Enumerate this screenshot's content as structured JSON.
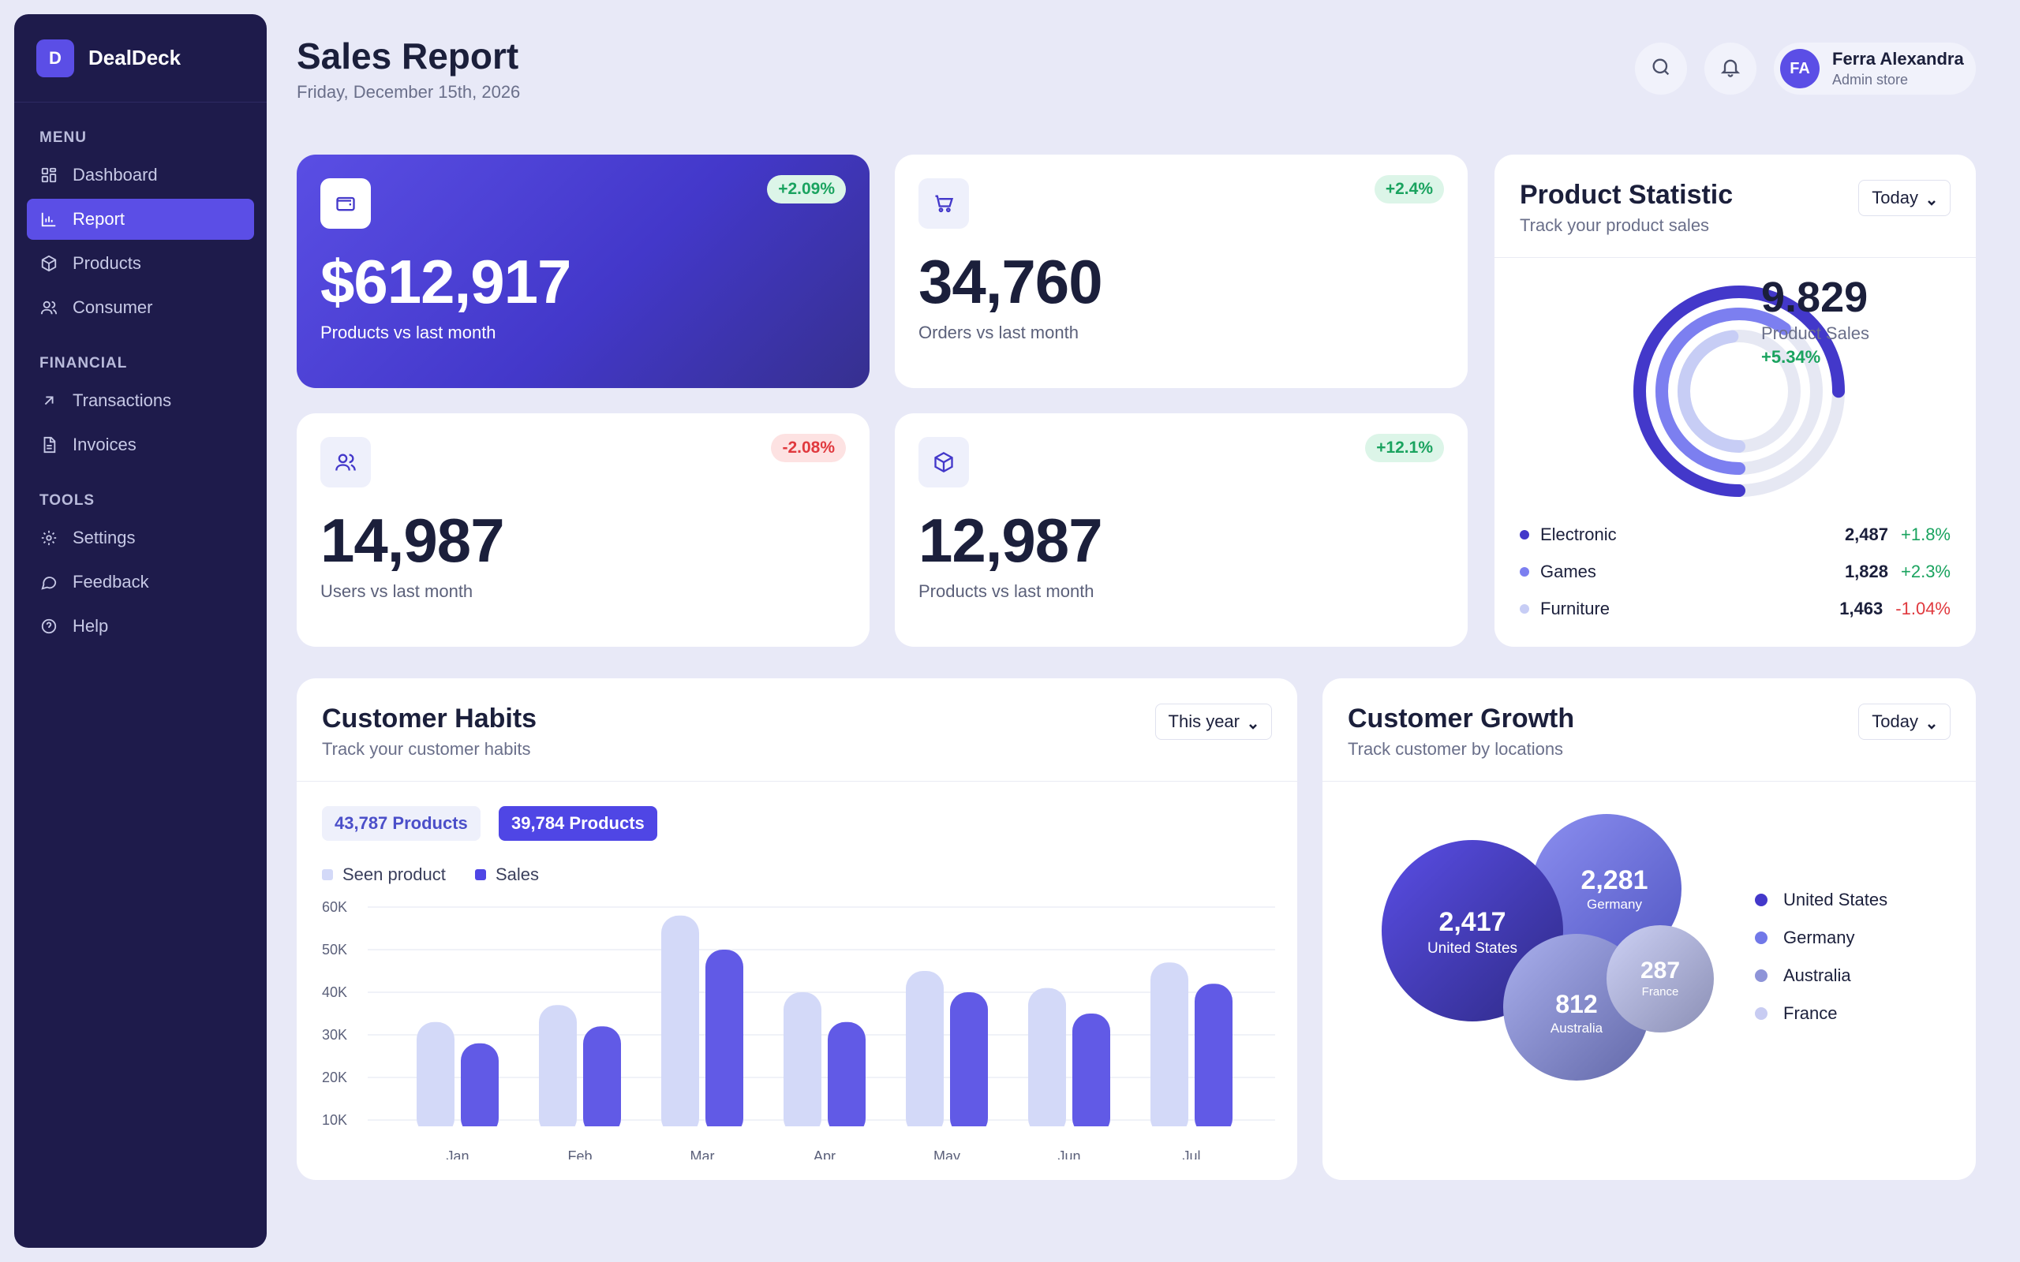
{
  "brand": {
    "initial": "D",
    "name": "DealDeck"
  },
  "sidebar": {
    "sections": [
      {
        "label": "MENU",
        "items": [
          {
            "label": "Dashboard",
            "icon": "grid-icon"
          },
          {
            "label": "Report",
            "icon": "bar-chart-icon",
            "active": true
          },
          {
            "label": "Products",
            "icon": "box-icon"
          },
          {
            "label": "Consumer",
            "icon": "users-icon"
          }
        ]
      },
      {
        "label": "FINANCIAL",
        "items": [
          {
            "label": "Transactions",
            "icon": "arrow-up-right-icon"
          },
          {
            "label": "Invoices",
            "icon": "document-icon"
          }
        ]
      },
      {
        "label": "TOOLS",
        "items": [
          {
            "label": "Settings",
            "icon": "gear-icon"
          },
          {
            "label": "Feedback",
            "icon": "chat-icon"
          },
          {
            "label": "Help",
            "icon": "help-icon"
          }
        ]
      }
    ]
  },
  "header": {
    "title": "Sales Report",
    "date": "Friday, December 15th, 2026",
    "user": {
      "initials": "FA",
      "name": "Ferra Alexandra",
      "role": "Admin store"
    }
  },
  "stats": [
    {
      "value": "$612,917",
      "label": "Products vs last month",
      "change": "+2.09%",
      "trend": "up",
      "icon": "wallet-icon"
    },
    {
      "value": "34,760",
      "label": "Orders vs last month",
      "change": "+2.4%",
      "trend": "up",
      "icon": "cart-icon"
    },
    {
      "value": "14,987",
      "label": "Users vs last month",
      "change": "-2.08%",
      "trend": "down",
      "icon": "users-icon"
    },
    {
      "value": "12,987",
      "label": "Products vs last month",
      "change": "+12.1%",
      "trend": "up",
      "icon": "box-icon"
    }
  ],
  "product_statistic": {
    "title": "Product Statistic",
    "subtitle": "Track your product sales",
    "filter": "Today",
    "total": "9.829",
    "total_label": "Product Sales",
    "total_change": "+5.34%",
    "categories": [
      {
        "name": "Electronic",
        "value": "2,487",
        "change": "+1.8%",
        "trend": "up",
        "color": "#4338ca",
        "fill": 0.75
      },
      {
        "name": "Games",
        "value": "1,828",
        "change": "+2.3%",
        "trend": "up",
        "color": "#7c7ff0",
        "fill": 0.6
      },
      {
        "name": "Furniture",
        "value": "1,463",
        "change": "-1.04%",
        "trend": "down",
        "color": "#c7cdf5",
        "fill": 0.48
      }
    ]
  },
  "customer_habits": {
    "title": "Customer Habits",
    "subtitle": "Track your customer habits",
    "filter": "This year",
    "pills": [
      "43,787 Products",
      "39,784 Products"
    ],
    "legend": [
      "Seen product",
      "Sales"
    ]
  },
  "chart_data": {
    "type": "bar",
    "categories": [
      "Jan",
      "Feb",
      "Mar",
      "Apr",
      "May",
      "Jun",
      "Jul"
    ],
    "series": [
      {
        "name": "Seen product",
        "values": [
          33,
          37,
          58,
          40,
          45,
          41,
          47
        ],
        "color": "#d3d9f8"
      },
      {
        "name": "Sales",
        "values": [
          28,
          32,
          50,
          33,
          40,
          35,
          42
        ],
        "color": "#615ae6"
      }
    ],
    "y_ticks": [
      "10K",
      "20K",
      "30K",
      "40K",
      "50K",
      "60K"
    ],
    "ylim": [
      10,
      60
    ]
  },
  "customer_growth": {
    "title": "Customer Growth",
    "subtitle": "Track customer by locations",
    "filter": "Today",
    "locations": [
      {
        "name": "United States",
        "value": "2,417",
        "color": "#4338ca"
      },
      {
        "name": "Germany",
        "value": "2,281",
        "color": "#7178e8"
      },
      {
        "name": "Australia",
        "value": "812",
        "color": "#8e94d8"
      },
      {
        "name": "France",
        "value": "287",
        "color": "#c8ccf2"
      }
    ]
  }
}
